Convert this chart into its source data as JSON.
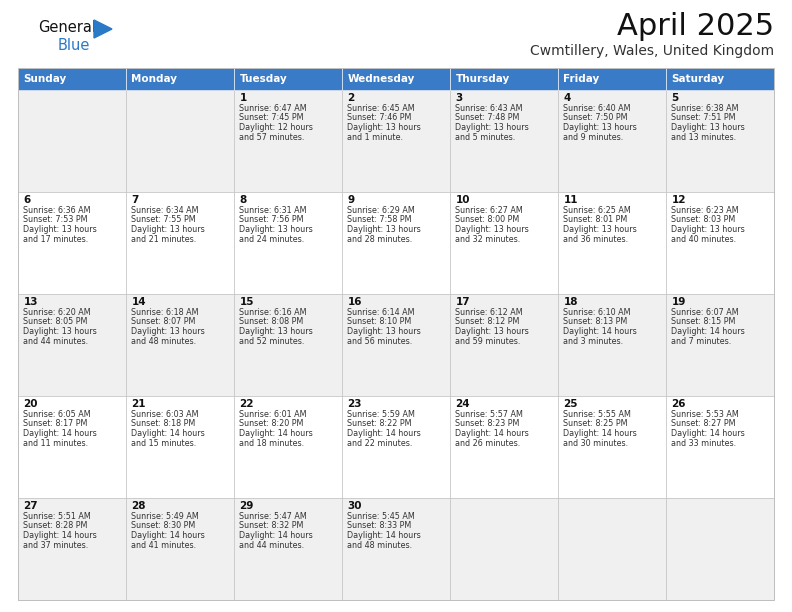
{
  "title": "April 2025",
  "subtitle": "Cwmtillery, Wales, United Kingdom",
  "days_of_week": [
    "Sunday",
    "Monday",
    "Tuesday",
    "Wednesday",
    "Thursday",
    "Friday",
    "Saturday"
  ],
  "header_color": "#3a7bc8",
  "header_text_color": "#ffffff",
  "bg_color": "#ffffff",
  "alt_row_color": "#f0f0f0",
  "cell_text_color": "#333333",
  "day_num_color": "#111111",
  "grid_color": "#bbbbbb",
  "title_color": "#111111",
  "subtitle_color": "#333333",
  "logo_general_color": "#111111",
  "logo_blue_color": "#2a7ac7",
  "weeks": [
    [
      {
        "day": null,
        "sunrise": null,
        "sunset": null,
        "daylight": null
      },
      {
        "day": null,
        "sunrise": null,
        "sunset": null,
        "daylight": null
      },
      {
        "day": 1,
        "sunrise": "6:47 AM",
        "sunset": "7:45 PM",
        "daylight": "12 hours\nand 57 minutes."
      },
      {
        "day": 2,
        "sunrise": "6:45 AM",
        "sunset": "7:46 PM",
        "daylight": "13 hours\nand 1 minute."
      },
      {
        "day": 3,
        "sunrise": "6:43 AM",
        "sunset": "7:48 PM",
        "daylight": "13 hours\nand 5 minutes."
      },
      {
        "day": 4,
        "sunrise": "6:40 AM",
        "sunset": "7:50 PM",
        "daylight": "13 hours\nand 9 minutes."
      },
      {
        "day": 5,
        "sunrise": "6:38 AM",
        "sunset": "7:51 PM",
        "daylight": "13 hours\nand 13 minutes."
      }
    ],
    [
      {
        "day": 6,
        "sunrise": "6:36 AM",
        "sunset": "7:53 PM",
        "daylight": "13 hours\nand 17 minutes."
      },
      {
        "day": 7,
        "sunrise": "6:34 AM",
        "sunset": "7:55 PM",
        "daylight": "13 hours\nand 21 minutes."
      },
      {
        "day": 8,
        "sunrise": "6:31 AM",
        "sunset": "7:56 PM",
        "daylight": "13 hours\nand 24 minutes."
      },
      {
        "day": 9,
        "sunrise": "6:29 AM",
        "sunset": "7:58 PM",
        "daylight": "13 hours\nand 28 minutes."
      },
      {
        "day": 10,
        "sunrise": "6:27 AM",
        "sunset": "8:00 PM",
        "daylight": "13 hours\nand 32 minutes."
      },
      {
        "day": 11,
        "sunrise": "6:25 AM",
        "sunset": "8:01 PM",
        "daylight": "13 hours\nand 36 minutes."
      },
      {
        "day": 12,
        "sunrise": "6:23 AM",
        "sunset": "8:03 PM",
        "daylight": "13 hours\nand 40 minutes."
      }
    ],
    [
      {
        "day": 13,
        "sunrise": "6:20 AM",
        "sunset": "8:05 PM",
        "daylight": "13 hours\nand 44 minutes."
      },
      {
        "day": 14,
        "sunrise": "6:18 AM",
        "sunset": "8:07 PM",
        "daylight": "13 hours\nand 48 minutes."
      },
      {
        "day": 15,
        "sunrise": "6:16 AM",
        "sunset": "8:08 PM",
        "daylight": "13 hours\nand 52 minutes."
      },
      {
        "day": 16,
        "sunrise": "6:14 AM",
        "sunset": "8:10 PM",
        "daylight": "13 hours\nand 56 minutes."
      },
      {
        "day": 17,
        "sunrise": "6:12 AM",
        "sunset": "8:12 PM",
        "daylight": "13 hours\nand 59 minutes."
      },
      {
        "day": 18,
        "sunrise": "6:10 AM",
        "sunset": "8:13 PM",
        "daylight": "14 hours\nand 3 minutes."
      },
      {
        "day": 19,
        "sunrise": "6:07 AM",
        "sunset": "8:15 PM",
        "daylight": "14 hours\nand 7 minutes."
      }
    ],
    [
      {
        "day": 20,
        "sunrise": "6:05 AM",
        "sunset": "8:17 PM",
        "daylight": "14 hours\nand 11 minutes."
      },
      {
        "day": 21,
        "sunrise": "6:03 AM",
        "sunset": "8:18 PM",
        "daylight": "14 hours\nand 15 minutes."
      },
      {
        "day": 22,
        "sunrise": "6:01 AM",
        "sunset": "8:20 PM",
        "daylight": "14 hours\nand 18 minutes."
      },
      {
        "day": 23,
        "sunrise": "5:59 AM",
        "sunset": "8:22 PM",
        "daylight": "14 hours\nand 22 minutes."
      },
      {
        "day": 24,
        "sunrise": "5:57 AM",
        "sunset": "8:23 PM",
        "daylight": "14 hours\nand 26 minutes."
      },
      {
        "day": 25,
        "sunrise": "5:55 AM",
        "sunset": "8:25 PM",
        "daylight": "14 hours\nand 30 minutes."
      },
      {
        "day": 26,
        "sunrise": "5:53 AM",
        "sunset": "8:27 PM",
        "daylight": "14 hours\nand 33 minutes."
      }
    ],
    [
      {
        "day": 27,
        "sunrise": "5:51 AM",
        "sunset": "8:28 PM",
        "daylight": "14 hours\nand 37 minutes."
      },
      {
        "day": 28,
        "sunrise": "5:49 AM",
        "sunset": "8:30 PM",
        "daylight": "14 hours\nand 41 minutes."
      },
      {
        "day": 29,
        "sunrise": "5:47 AM",
        "sunset": "8:32 PM",
        "daylight": "14 hours\nand 44 minutes."
      },
      {
        "day": 30,
        "sunrise": "5:45 AM",
        "sunset": "8:33 PM",
        "daylight": "14 hours\nand 48 minutes."
      },
      {
        "day": null,
        "sunrise": null,
        "sunset": null,
        "daylight": null
      },
      {
        "day": null,
        "sunrise": null,
        "sunset": null,
        "daylight": null
      },
      {
        "day": null,
        "sunrise": null,
        "sunset": null,
        "daylight": null
      }
    ]
  ]
}
